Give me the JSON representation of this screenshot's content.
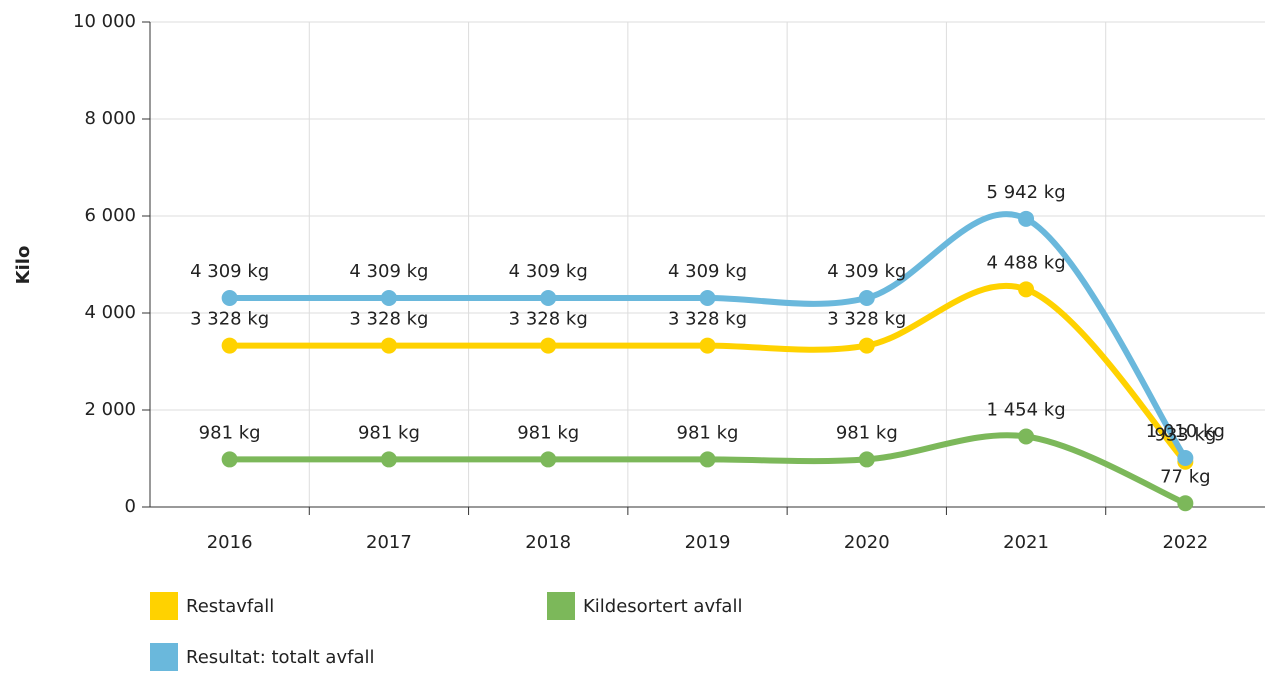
{
  "chart_data": {
    "type": "line",
    "y_label": "Kilo",
    "categories": [
      "2016",
      "2017",
      "2018",
      "2019",
      "2020",
      "2021",
      "2022"
    ],
    "series": [
      {
        "name": "Restavfall",
        "color": "#ffd200",
        "values": [
          3328,
          3328,
          3328,
          3328,
          3328,
          4488,
          933
        ],
        "value_labels": [
          "3 328 kg",
          "3 328 kg",
          "3 328 kg",
          "3 328 kg",
          "3 328 kg",
          "4 488 kg",
          "933 kg"
        ]
      },
      {
        "name": "Kildesortert avfall",
        "color": "#7cb85a",
        "values": [
          981,
          981,
          981,
          981,
          981,
          1454,
          77
        ],
        "value_labels": [
          "981 kg",
          "981 kg",
          "981 kg",
          "981 kg",
          "981 kg",
          "1 454 kg",
          "77 kg"
        ]
      },
      {
        "name": "Resultat: totalt avfall",
        "color": "#6ab8dc",
        "values": [
          4309,
          4309,
          4309,
          4309,
          4309,
          5942,
          1010
        ],
        "value_labels": [
          "4 309 kg",
          "4 309 kg",
          "4 309 kg",
          "4 309 kg",
          "4 309 kg",
          "5 942 kg",
          "1 010 kg"
        ]
      }
    ],
    "ylim": [
      0,
      10000
    ],
    "yticks": [
      0,
      {
        "value": 2000,
        "label": "2 000"
      },
      {
        "value": 4000,
        "label": "4 000"
      },
      {
        "value": 6000,
        "label": "6 000"
      },
      {
        "value": 8000,
        "label": "8 000"
      },
      {
        "value": 10000,
        "label": "10 000"
      }
    ],
    "grid": true
  }
}
